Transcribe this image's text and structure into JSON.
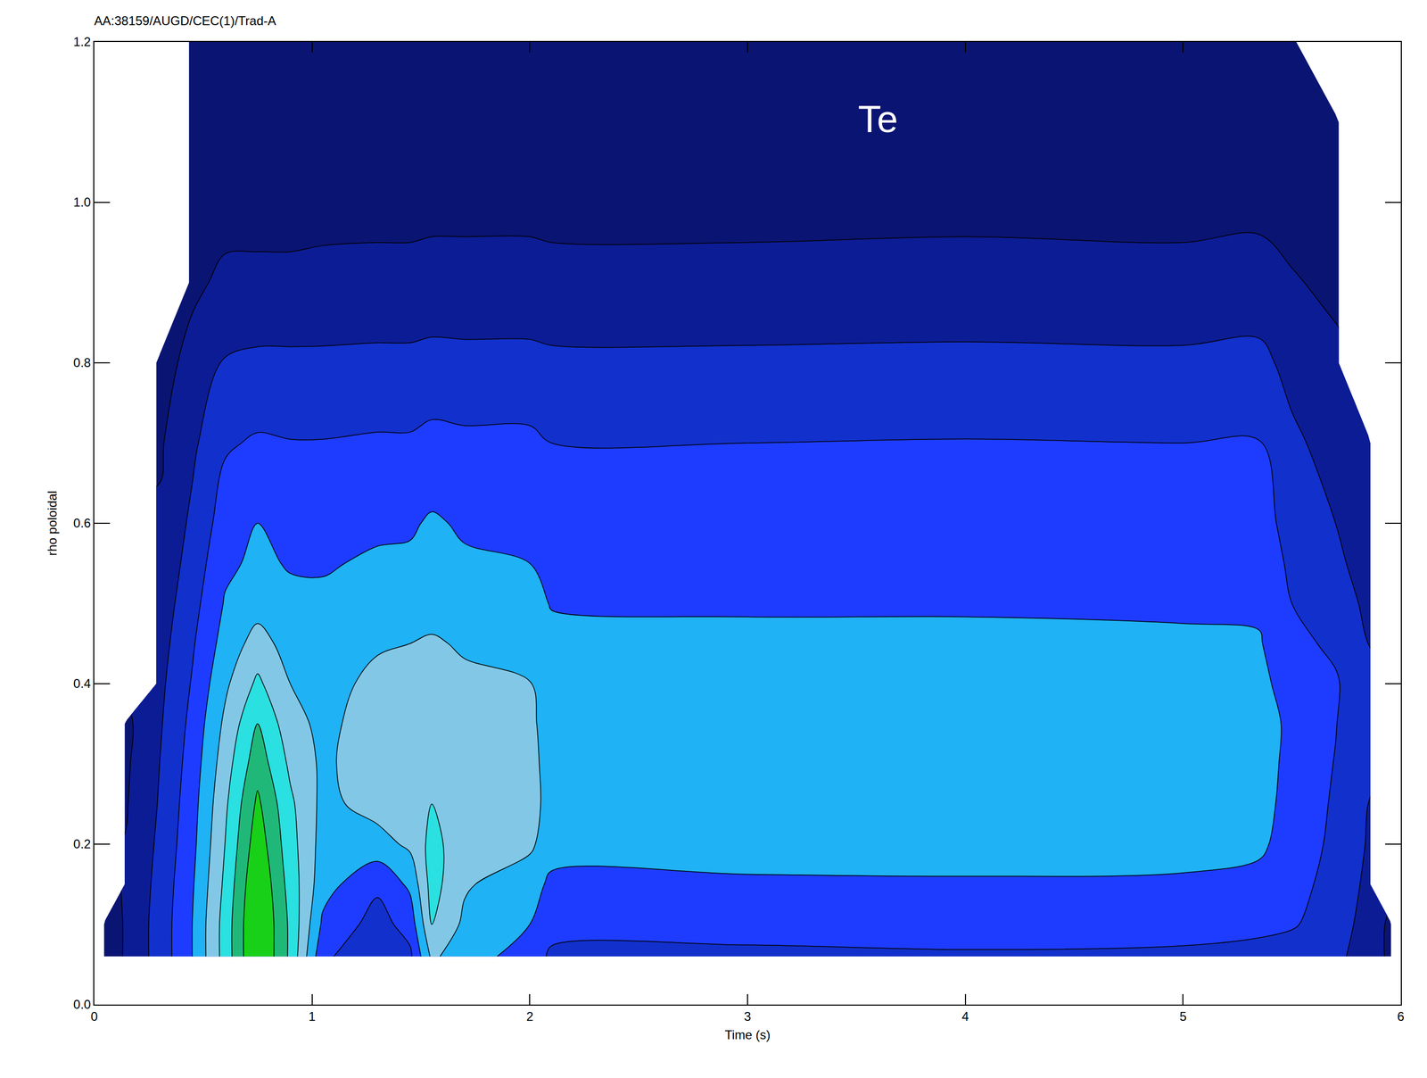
{
  "chart_data": {
    "type": "contour",
    "title": "AA:38159/AUGD/CEC(1)/Trad-A",
    "annotations": [
      "Te"
    ],
    "x_label": "Time (s)",
    "y_label": "rho poloidal",
    "xlim": [
      0,
      6
    ],
    "xticks": [
      0,
      1,
      2,
      3,
      4,
      5,
      6
    ],
    "ylim": [
      0,
      1.2
    ],
    "yticks": [
      {
        "value": 0,
        "label": "0.0"
      },
      0.2,
      0.4,
      0.6,
      0.8,
      {
        "value": 1,
        "label": "1.0"
      },
      1.2
    ],
    "grid": false,
    "x": [
      0,
      0.05,
      0.15,
      0.3,
      0.45,
      0.6,
      0.75,
      0.9,
      1.05,
      1.3,
      1.45,
      1.55,
      1.7,
      2.0,
      2.1,
      3.0,
      4.0,
      5.0,
      5.35,
      5.5,
      5.7,
      5.85,
      5.95,
      6.0
    ],
    "y": [
      0.06,
      0.1,
      0.15,
      0.2,
      0.25,
      0.3,
      0.35,
      0.4,
      0.45,
      0.5,
      0.55,
      0.6,
      0.7,
      0.8,
      0.9,
      1.0,
      1.1,
      1.2
    ],
    "values": [
      [
        null,
        null,
        null,
        null,
        null,
        null,
        null,
        null,
        null,
        null,
        null,
        null,
        null,
        null,
        null,
        null,
        null,
        null
      ],
      [
        0.05,
        0.04,
        null,
        null,
        null,
        null,
        null,
        null,
        null,
        null,
        null,
        null,
        null,
        null,
        null,
        null,
        null,
        null
      ],
      [
        0.3,
        0.3,
        0.28,
        0.26,
        0.24,
        0.22,
        0.2,
        null,
        null,
        null,
        null,
        null,
        null,
        null,
        null,
        null,
        null,
        null
      ],
      [
        0.6,
        0.6,
        0.58,
        0.55,
        0.52,
        0.5,
        0.47,
        0.44,
        0.4,
        0.36,
        0.32,
        0.28,
        0.22,
        0.15,
        null,
        null,
        null,
        null
      ],
      [
        1.0,
        1.0,
        0.97,
        0.93,
        0.9,
        0.86,
        0.82,
        0.77,
        0.72,
        0.66,
        0.6,
        0.55,
        0.45,
        0.33,
        0.2,
        0.11,
        0.06,
        0.03
      ],
      [
        1.6,
        1.6,
        1.55,
        1.5,
        1.45,
        1.38,
        1.3,
        1.2,
        1.1,
        1.02,
        0.95,
        0.87,
        0.72,
        0.52,
        0.3,
        0.16,
        0.08,
        0.04
      ],
      [
        2.3,
        2.3,
        2.25,
        2.15,
        2.05,
        1.9,
        1.75,
        1.55,
        1.35,
        1.15,
        1.05,
        1.0,
        0.78,
        0.55,
        0.3,
        0.17,
        0.09,
        0.04
      ],
      [
        1.7,
        1.7,
        1.65,
        1.6,
        1.55,
        1.45,
        1.35,
        1.25,
        1.15,
        1.06,
        0.98,
        0.92,
        0.76,
        0.55,
        0.3,
        0.17,
        0.09,
        0.04
      ],
      [
        0.8,
        0.95,
        1.1,
        1.15,
        1.18,
        1.2,
        1.18,
        1.15,
        1.1,
        1.04,
        0.98,
        0.92,
        0.76,
        0.55,
        0.31,
        0.18,
        0.09,
        0.04
      ],
      [
        0.55,
        0.65,
        0.8,
        1.15,
        1.35,
        1.4,
        1.38,
        1.32,
        1.22,
        1.1,
        1.03,
        0.96,
        0.78,
        0.56,
        0.32,
        0.18,
        0.09,
        0.04
      ],
      [
        0.7,
        0.85,
        1.05,
        1.3,
        1.38,
        1.4,
        1.38,
        1.33,
        1.25,
        1.12,
        1.04,
        0.97,
        0.78,
        0.56,
        0.32,
        0.18,
        0.09,
        0.04
      ],
      [
        1.3,
        1.5,
        1.6,
        1.58,
        1.5,
        1.42,
        1.38,
        1.35,
        1.28,
        1.15,
        1.08,
        1.03,
        0.82,
        0.58,
        0.33,
        0.19,
        0.1,
        0.05
      ],
      [
        1.1,
        1.2,
        1.28,
        1.35,
        1.36,
        1.35,
        1.33,
        1.3,
        1.22,
        1.1,
        1.03,
        0.97,
        0.8,
        0.57,
        0.33,
        0.19,
        0.1,
        0.05
      ],
      [
        0.9,
        1.0,
        1.1,
        1.3,
        1.35,
        1.35,
        1.32,
        1.26,
        1.15,
        1.06,
        1.0,
        0.95,
        0.8,
        0.57,
        0.33,
        0.19,
        0.1,
        0.05
      ],
      [
        0.7,
        0.85,
        0.95,
        1.1,
        1.15,
        1.12,
        1.1,
        1.08,
        1.05,
        0.99,
        0.93,
        0.88,
        0.75,
        0.55,
        0.32,
        0.18,
        0.1,
        0.05
      ],
      [
        0.7,
        0.84,
        0.96,
        1.12,
        1.16,
        1.13,
        1.1,
        1.07,
        1.04,
        0.98,
        0.93,
        0.88,
        0.75,
        0.55,
        0.32,
        0.18,
        0.1,
        0.05
      ],
      [
        0.72,
        0.86,
        0.97,
        1.12,
        1.16,
        1.13,
        1.1,
        1.08,
        1.04,
        0.98,
        0.93,
        0.88,
        0.76,
        0.56,
        0.33,
        0.19,
        0.1,
        0.05
      ],
      [
        0.7,
        0.85,
        0.96,
        1.1,
        1.15,
        1.13,
        1.1,
        1.07,
        1.03,
        0.97,
        0.92,
        0.87,
        0.75,
        0.55,
        0.32,
        0.18,
        0.1,
        0.05
      ],
      [
        0.68,
        0.8,
        0.92,
        1.05,
        1.1,
        1.12,
        1.1,
        1.06,
        1.02,
        0.96,
        0.91,
        0.86,
        0.76,
        0.57,
        0.34,
        0.19,
        0.1,
        0.05
      ],
      [
        0.6,
        0.78,
        0.85,
        0.88,
        0.9,
        0.92,
        0.95,
        0.9,
        0.82,
        0.75,
        0.7,
        0.65,
        0.55,
        0.42,
        0.27,
        0.16,
        0.08,
        0.04
      ],
      [
        0.55,
        0.6,
        0.65,
        0.7,
        0.72,
        0.74,
        0.76,
        0.78,
        0.7,
        0.62,
        0.55,
        0.5,
        0.4,
        0.3,
        0.2,
        0.12,
        0.06,
        null
      ],
      [
        0.4,
        0.42,
        0.45,
        0.48,
        0.5,
        0.52,
        0.54,
        0.55,
        0.5,
        0.45,
        0.4,
        0.35,
        0.25,
        null,
        null,
        null,
        null,
        null
      ],
      [
        0.2,
        0.2,
        null,
        null,
        null,
        null,
        null,
        null,
        null,
        null,
        null,
        null,
        null,
        null,
        null,
        null,
        null,
        null
      ],
      [
        null,
        null,
        null,
        null,
        null,
        null,
        null,
        null,
        null,
        null,
        null,
        null,
        null,
        null,
        null,
        null,
        null,
        null
      ]
    ],
    "zlim": [
      0,
      2.25
    ],
    "levels": [
      0.25,
      0.5,
      0.75,
      1.0,
      1.25,
      1.5,
      1.75,
      2.0
    ],
    "colors": [
      "#0a1472",
      "#0c1c95",
      "#1230cc",
      "#1e3cff",
      "#1fb2f5",
      "#82c8e6",
      "#2ae0e0",
      "#20b878",
      "#18d018"
    ]
  }
}
